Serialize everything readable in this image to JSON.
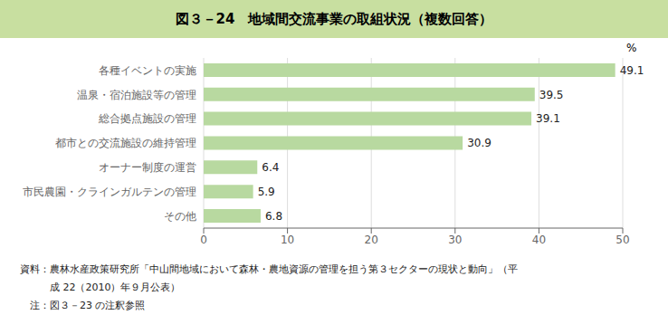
{
  "chart_data": {
    "type": "bar",
    "orientation": "horizontal",
    "title": "図３－24　地域間交流事業の取組状況（複数回答）",
    "xlabel": "%",
    "categories": [
      "その他",
      "市民農園・クラインガルテンの管理",
      "オーナー制度の運営",
      "都市との交流施設の維持管理",
      "総合拠点施設の管理",
      "温泉・宿泊施設等の管理",
      "各種イベントの実施"
    ],
    "values": [
      6.8,
      5.9,
      6.4,
      30.9,
      39.1,
      39.5,
      49.1
    ],
    "color": "#b8d9a0",
    "xlim": [
      0,
      50
    ],
    "xticks": [
      0,
      10,
      20,
      30,
      40,
      50
    ],
    "grid": true,
    "data_labels": true,
    "annotations": [
      "資料：農林水産政策研究所「中山間地域において森林・農地資源の管理を担う第３セクターの現状と動向」（平",
      "　　　成 22（2010）年９月公表）",
      "　注：図３－23 の注釈参照"
    ]
  }
}
